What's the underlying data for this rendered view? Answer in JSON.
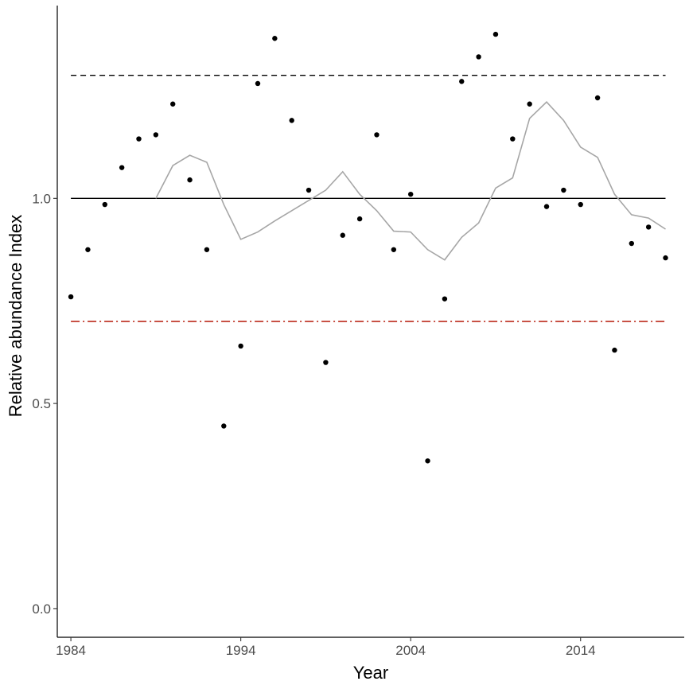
{
  "chart_data": {
    "type": "scatter",
    "title": "",
    "xlabel": "Year",
    "ylabel": "Relative abundance Index",
    "xlim": [
      1983.2,
      2020.1
    ],
    "ylim": [
      -0.07,
      1.47
    ],
    "x_ticks": [
      1984,
      1994,
      2004,
      2014
    ],
    "x_tick_labels": [
      "1984",
      "1994",
      "2004",
      "2014"
    ],
    "y_ticks": [
      0.0,
      0.5,
      1.0
    ],
    "y_tick_labels": [
      "0.0",
      "0.5",
      "1.0"
    ],
    "grid": false,
    "legend": "none",
    "points": {
      "x": [
        1984,
        1985,
        1986,
        1987,
        1988,
        1989,
        1990,
        1991,
        1992,
        1993,
        1994,
        1995,
        1996,
        1997,
        1998,
        1999,
        2000,
        2001,
        2002,
        2003,
        2004,
        2005,
        2006,
        2007,
        2008,
        2009,
        2010,
        2011,
        2012,
        2013,
        2014,
        2015,
        2016,
        2017,
        2018,
        2019
      ],
      "y": [
        0.76,
        0.875,
        0.985,
        1.075,
        1.145,
        1.155,
        1.23,
        1.045,
        0.875,
        0.445,
        0.64,
        1.28,
        1.39,
        1.19,
        1.02,
        0.6,
        0.91,
        0.95,
        1.155,
        0.875,
        1.01,
        0.36,
        0.755,
        1.285,
        1.345,
        1.4,
        1.145,
        1.23,
        0.98,
        1.02,
        0.985,
        1.245,
        0.63,
        0.89,
        0.93,
        0.855
      ],
      "color": "#000000"
    },
    "smooth_line": {
      "x": [
        1989,
        1990,
        1991,
        1992,
        1993,
        1994,
        1995,
        1996,
        1997,
        1998,
        1999,
        2000,
        2001,
        2002,
        2003,
        2004,
        2005,
        2006,
        2007,
        2008,
        2009,
        2010,
        2011,
        2012,
        2013,
        2014,
        2015,
        2016,
        2017,
        2018,
        2019
      ],
      "y": [
        1.0,
        1.08,
        1.105,
        1.088,
        0.985,
        0.9,
        0.918,
        0.945,
        0.97,
        0.995,
        1.02,
        1.065,
        1.01,
        0.97,
        0.92,
        0.918,
        0.875,
        0.85,
        0.905,
        0.94,
        1.025,
        1.05,
        1.195,
        1.235,
        1.19,
        1.125,
        1.1,
        1.01,
        0.96,
        0.952,
        0.925
      ],
      "color": "#a6a6a6"
    },
    "reference_lines": [
      {
        "y": 1.3,
        "style": "dashed",
        "color": "#000000"
      },
      {
        "y": 1.0,
        "style": "solid",
        "color": "#000000"
      },
      {
        "y": 0.7,
        "style": "dashdot",
        "color": "#c0392b"
      }
    ]
  }
}
